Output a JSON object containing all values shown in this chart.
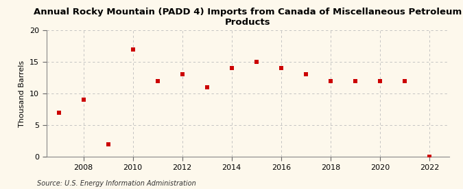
{
  "title": "Annual Rocky Mountain (PADD 4) Imports from Canada of Miscellaneous Petroleum Products",
  "ylabel": "Thousand Barrels",
  "source": "Source: U.S. Energy Information Administration",
  "years": [
    2007,
    2008,
    2009,
    2010,
    2011,
    2012,
    2013,
    2014,
    2015,
    2016,
    2017,
    2018,
    2019,
    2020,
    2021,
    2022
  ],
  "values": [
    7,
    9,
    2,
    17,
    12,
    13,
    11,
    14,
    15,
    14,
    13,
    12,
    12,
    12,
    12,
    0
  ],
  "marker_color": "#cc0000",
  "marker": "s",
  "marker_size": 4,
  "background_color": "#fdf8ec",
  "grid_color": "#bbbbbb",
  "ylim": [
    0,
    20
  ],
  "yticks": [
    0,
    5,
    10,
    15,
    20
  ],
  "xticks": [
    2008,
    2010,
    2012,
    2014,
    2016,
    2018,
    2020,
    2022
  ],
  "title_fontsize": 9.5,
  "label_fontsize": 8,
  "tick_fontsize": 8,
  "source_fontsize": 7
}
